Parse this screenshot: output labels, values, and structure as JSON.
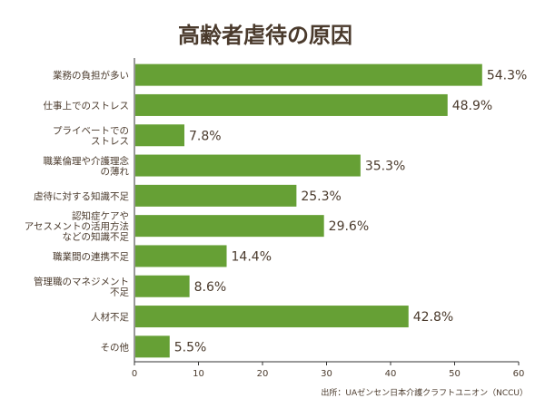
{
  "chart_data": {
    "type": "bar",
    "orientation": "horizontal",
    "title": "高齢者虐待の原因",
    "categories": [
      "業務の負担が多い",
      "仕事上でのストレス",
      "プライベートでの\nストレス",
      "職業倫理や介護理念\nの薄れ",
      "虐待に対する知識不足",
      "認知症ケアや\nアセスメントの活用方法\nなどの知識不足",
      "職業間の連携不足",
      "管理職のマネジメント\n不足",
      "人材不足",
      "その他"
    ],
    "values": [
      54.3,
      48.9,
      7.8,
      35.3,
      25.3,
      29.6,
      14.4,
      8.6,
      42.8,
      5.5
    ],
    "value_labels": [
      "54.3%",
      "48.9%",
      "7.8%",
      "35.3%",
      "25.3%",
      "29.6%",
      "14.4%",
      "8.6%",
      "42.8%",
      "5.5%"
    ],
    "xlim": [
      0,
      60
    ],
    "xticks": [
      "0",
      "10",
      "20",
      "30",
      "40",
      "50",
      "60"
    ],
    "xlabel": "",
    "ylabel": "",
    "grid": false,
    "bar_color": "#66a035",
    "source": "出所：UAゼンセン日本介護クラフトユニオン（NCCU）"
  }
}
